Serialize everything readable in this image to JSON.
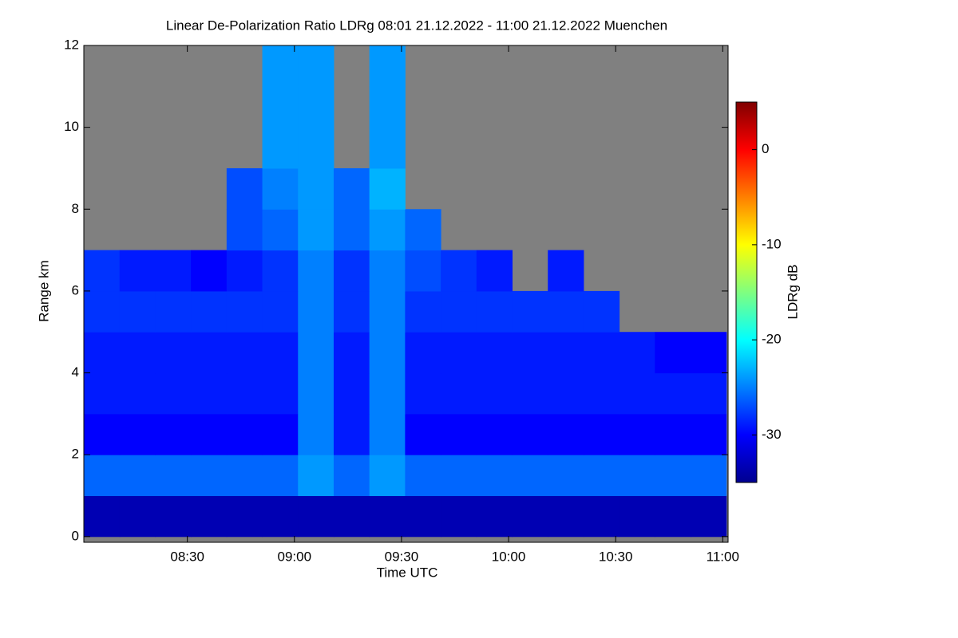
{
  "chart_data": {
    "type": "heatmap",
    "title": "Linear De-Polarization Ratio LDRg   08:01 21.12.2022 - 11:00 21.12.2022 Muenchen",
    "x_label": "Time UTC",
    "y_label": "Range km",
    "colorbar_label": "LDRg dB",
    "x": [
      486,
      496,
      506,
      516,
      526,
      536,
      546,
      556,
      566,
      576,
      586,
      596,
      606,
      616,
      626,
      636,
      646,
      656
    ],
    "y": [
      0.5,
      1.5,
      2.5,
      3.5,
      4.5,
      5.5,
      6.5,
      7.5,
      8.5,
      9.5,
      10.5,
      11.5
    ],
    "z": [
      [
        -33,
        -33,
        -33,
        -33,
        -33,
        -33,
        -33,
        -33,
        -33,
        -33,
        -33,
        -33,
        -33,
        -33,
        -33,
        -33,
        -33,
        -33
      ],
      [
        -26,
        -26,
        -26,
        -26,
        -26,
        -26,
        -24,
        -26,
        -24,
        -26,
        -26,
        -26,
        -26,
        -26,
        -26,
        -26,
        -26,
        -26
      ],
      [
        -30,
        -30,
        -30,
        -30,
        -30,
        -30,
        -25,
        -29,
        -25,
        -30,
        -30,
        -30,
        -30,
        -30,
        -30,
        -30,
        -30,
        -30
      ],
      [
        -29,
        -29,
        -29,
        -29,
        -29,
        -29,
        -25,
        -29,
        -25,
        -29,
        -29,
        -29,
        -29,
        -29,
        -29,
        -29,
        -29,
        -29
      ],
      [
        -29,
        -29,
        -29,
        -29,
        -29,
        -29,
        -25,
        -29,
        -25,
        -29,
        -29,
        -29,
        -29,
        -29,
        -29,
        -29,
        -30,
        -30
      ],
      [
        -28,
        -28,
        -28,
        -28,
        -28,
        -28,
        -25,
        -28,
        -25,
        -28,
        -28,
        -28,
        -28,
        -28,
        -28,
        null,
        null,
        null
      ],
      [
        -28,
        -29,
        -29,
        -30,
        -29,
        -28,
        -25,
        -28,
        -25,
        -27,
        -28,
        -29,
        null,
        -29,
        null,
        null,
        null,
        null
      ],
      [
        null,
        null,
        null,
        null,
        -27,
        -26,
        -24,
        -26,
        -24,
        -26,
        null,
        null,
        null,
        null,
        null,
        null,
        null,
        null
      ],
      [
        null,
        null,
        null,
        null,
        -27,
        -25,
        -24,
        -26,
        -23,
        null,
        null,
        null,
        null,
        null,
        null,
        null,
        null,
        null
      ],
      [
        null,
        null,
        null,
        null,
        null,
        -24,
        -24,
        null,
        -24,
        null,
        null,
        null,
        null,
        null,
        null,
        null,
        null,
        null
      ],
      [
        null,
        null,
        null,
        null,
        null,
        -24,
        -24,
        null,
        -24,
        null,
        null,
        null,
        null,
        null,
        null,
        null,
        null,
        null
      ],
      [
        null,
        null,
        null,
        null,
        null,
        -24,
        -24,
        null,
        -24,
        null,
        null,
        null,
        null,
        null,
        null,
        null,
        null,
        null
      ]
    ],
    "xlim": [
      481,
      661.5
    ],
    "xticks": [
      {
        "value": 510,
        "label": "08:30"
      },
      {
        "value": 540,
        "label": "09:00"
      },
      {
        "value": 570,
        "label": "09:30"
      },
      {
        "value": 600,
        "label": "10:00"
      },
      {
        "value": 630,
        "label": "10:30"
      },
      {
        "value": 660,
        "label": "11:00"
      }
    ],
    "ylim": [
      -0.14,
      12
    ],
    "yticks": [
      0,
      2,
      4,
      6,
      8,
      10,
      12
    ],
    "zlim": [
      -35,
      5
    ],
    "zticks": [
      -30,
      -20,
      -10,
      0
    ],
    "colormap": "jet",
    "missing_color": "#808080"
  }
}
